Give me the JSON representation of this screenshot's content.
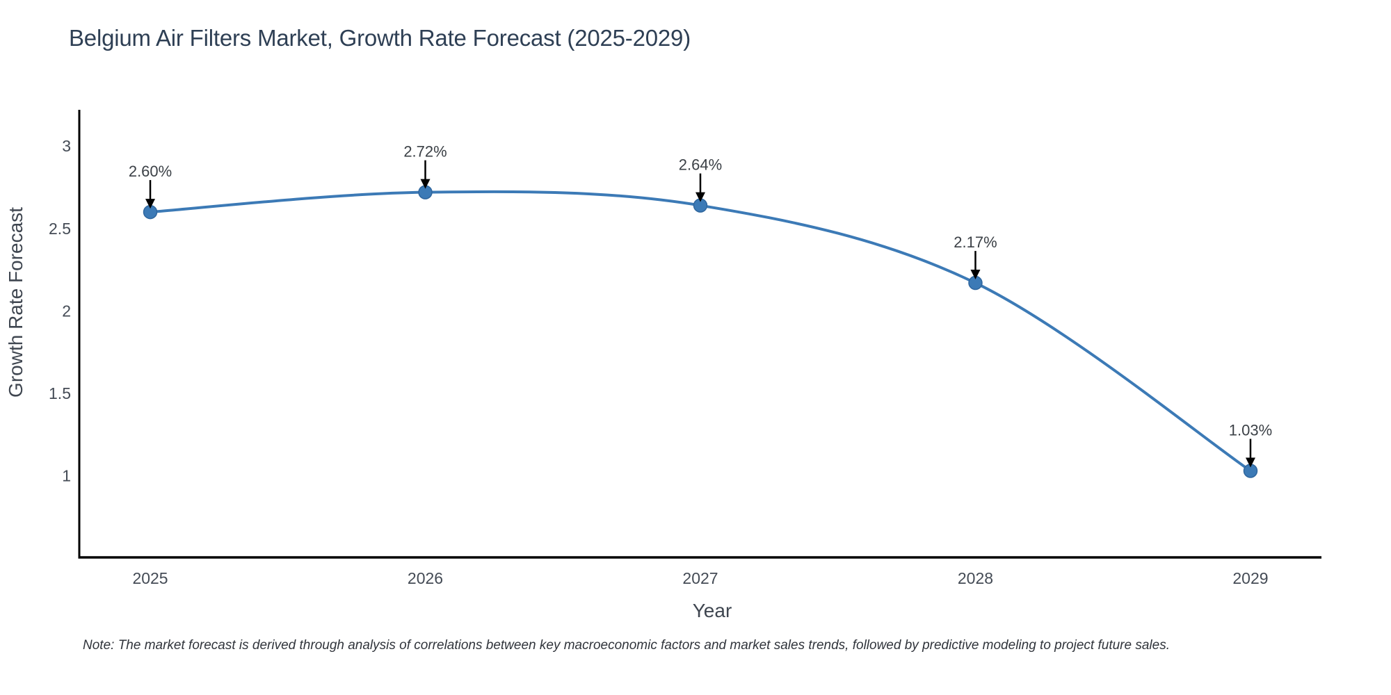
{
  "title": "Belgium Air Filters Market, Growth Rate Forecast (2025-2029)",
  "note": "Note: The market forecast is derived through analysis of correlations between key macroeconomic factors and market sales trends, followed by predictive modeling to project future sales.",
  "chart_data": {
    "type": "line",
    "title": "Belgium Air Filters Market, Growth Rate Forecast (2025-2029)",
    "x": [
      2025,
      2026,
      2027,
      2028,
      2029
    ],
    "categories": [
      "2025",
      "2026",
      "2027",
      "2028",
      "2029"
    ],
    "values": [
      2.6,
      2.72,
      2.64,
      2.17,
      1.03
    ],
    "point_labels": [
      "2.60%",
      "2.72%",
      "2.64%",
      "2.17%",
      "1.03%"
    ],
    "xlabel": "Year",
    "ylabel": "Growth Rate Forecast",
    "yticks": [
      3,
      2.5,
      2,
      1.5,
      1
    ],
    "ytick_labels": [
      "3",
      "2.5",
      "2",
      "1.5",
      "1"
    ],
    "ylim": [
      0.505,
      3.22
    ],
    "xlim": [
      2024.742,
      2029.258
    ],
    "grid": false,
    "legend": false,
    "line_style": "spline",
    "annotations": "down-arrow-to-point",
    "colors": {
      "line": "#3c7ab6",
      "marker_fill": "#3c7ab6",
      "marker_edge": "#2f669e",
      "axis_line": "#000000",
      "arrow": "#000000",
      "title_text": "#2e3f54",
      "tick_text": "#444b55",
      "axis_title_text": "#3f4650",
      "annotation_text": "#3b4046",
      "note_text": "#30343b"
    }
  }
}
